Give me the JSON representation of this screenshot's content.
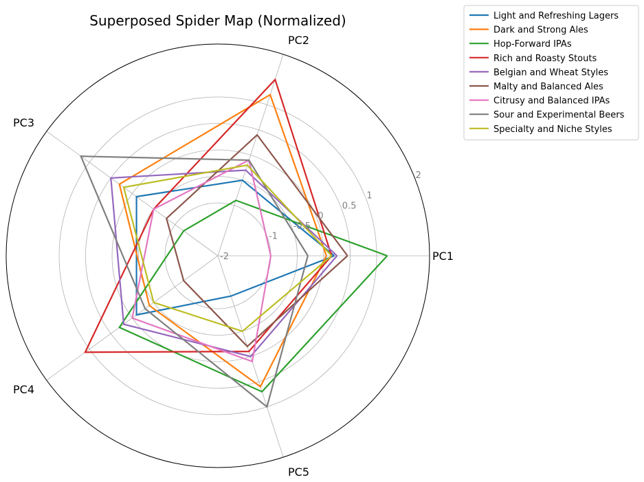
{
  "chart_data": {
    "type": "radar",
    "title": "Superposed Spider Map (Normalized)",
    "axes": [
      "PC1",
      "PC2",
      "PC3",
      "PC4",
      "PC5"
    ],
    "rlim": [
      -2,
      2
    ],
    "rticks": [
      -2,
      -1,
      -0.5,
      0,
      0.5,
      1,
      2
    ],
    "rtick_labels": [
      "-2",
      "-1",
      "-0.5",
      "0",
      "0.5",
      "1",
      "2"
    ],
    "grid": true,
    "legend_position": "upper-right-outside",
    "series": [
      {
        "name": "Light and Refreshing Lagers",
        "color": "#1f77b4",
        "values": [
          0.2,
          -0.5,
          -0.1,
          -0.1,
          -1.2
        ]
      },
      {
        "name": "Dark and Strong Ales",
        "color": "#ff7f0e",
        "values": [
          0.05,
          1.2,
          0.3,
          -0.4,
          0.6
        ]
      },
      {
        "name": "Hop-Forward IPAs",
        "color": "#2ca02c",
        "values": [
          1.2,
          -0.9,
          -1.2,
          0.3,
          0.7
        ]
      },
      {
        "name": "Rich and Roasty Stouts",
        "color": "#d62728",
        "values": [
          0.15,
          1.5,
          -0.5,
          1.1,
          -0.1
        ]
      },
      {
        "name": "Belgian and Wheat Styles",
        "color": "#9467bd",
        "values": [
          0.25,
          -0.3,
          0.5,
          0.2,
          0.0
        ]
      },
      {
        "name": "Malty and Balanced Ales",
        "color": "#8c564b",
        "values": [
          0.45,
          0.4,
          -0.8,
          -1.2,
          -0.2
        ]
      },
      {
        "name": "Citrusy and Balanced IPAs",
        "color": "#e377c2",
        "values": [
          -1.0,
          -0.1,
          -0.5,
          0.0,
          0.1
        ]
      },
      {
        "name": "Sour and Experimental Beers",
        "color": "#7f7f7f",
        "values": [
          -0.3,
          -0.1,
          1.2,
          -0.3,
          1.0
        ]
      },
      {
        "name": "Specialty and Niche Styles",
        "color": "#bcbd22",
        "values": [
          0.15,
          -0.2,
          0.2,
          -0.5,
          -0.5
        ]
      }
    ]
  }
}
